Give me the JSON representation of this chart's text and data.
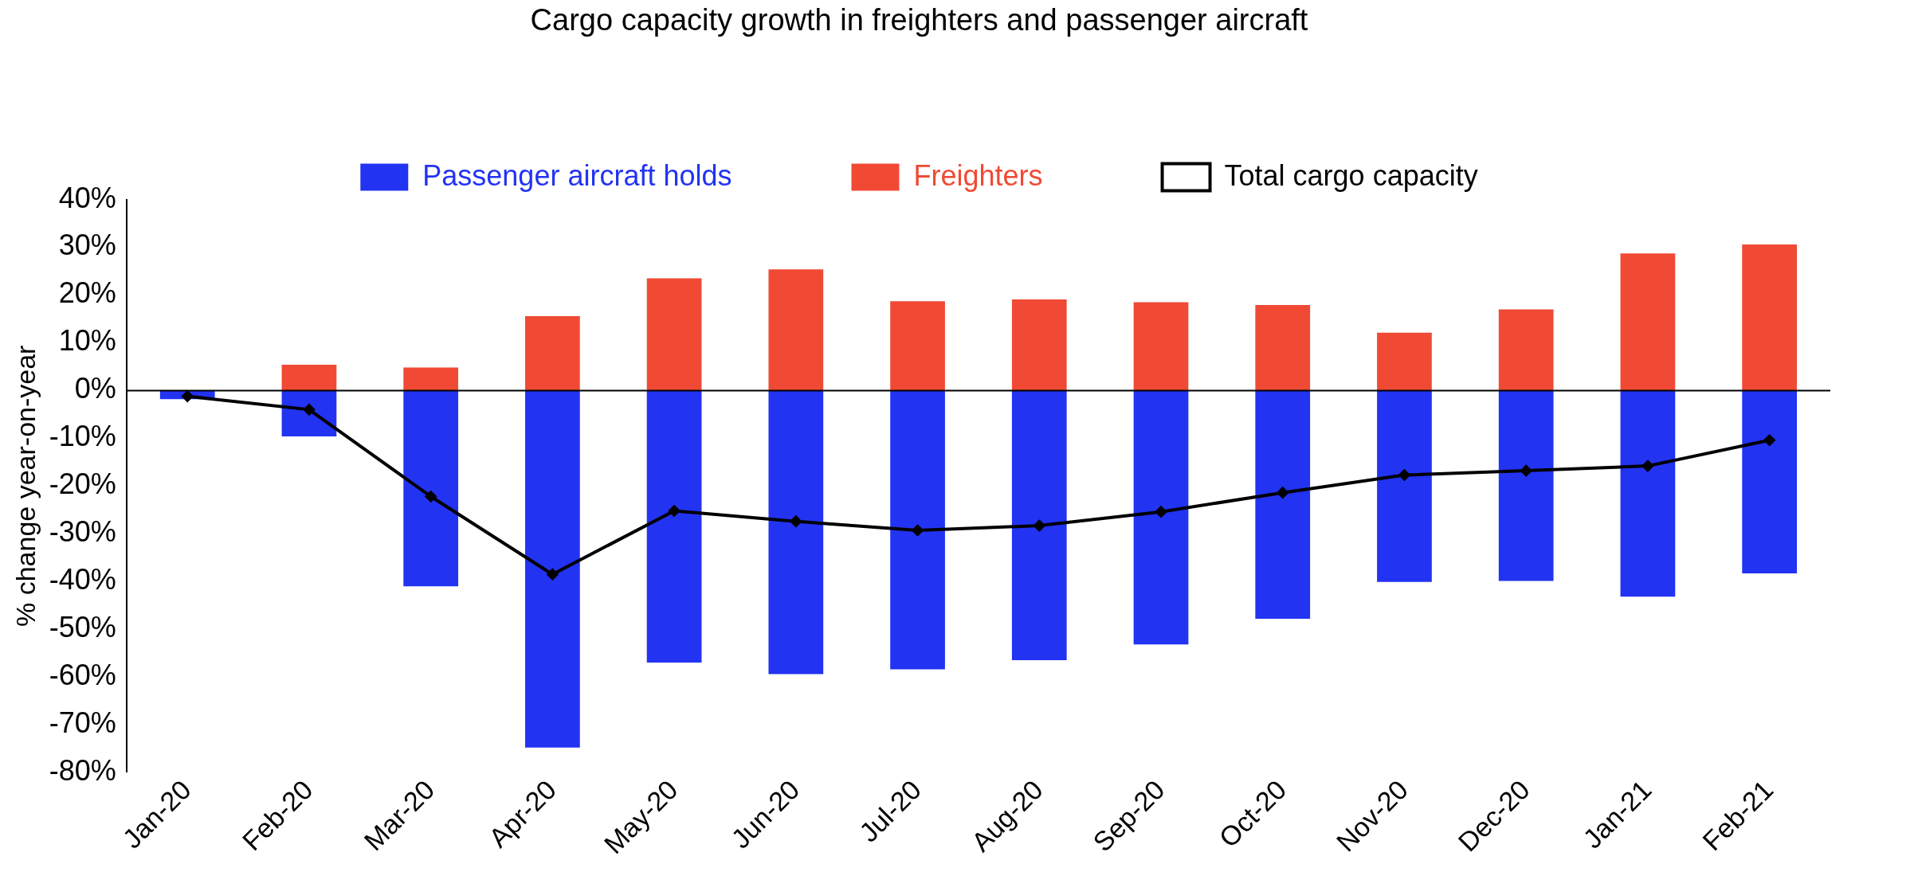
{
  "chart_data": {
    "type": "bar",
    "title": "Cargo capacity growth in freighters and passenger aircraft",
    "ylabel": "% change year-on-year",
    "categories": [
      "Jan-20",
      "Feb-20",
      "Mar-20",
      "Apr-20",
      "May-20",
      "Jun-20",
      "Jul-20",
      "Aug-20",
      "Sep-20",
      "Oct-20",
      "Nov-20",
      "Dec-20",
      "Jan-21",
      "Feb-21"
    ],
    "stacked": true,
    "series": [
      {
        "name": "Passenger aircraft holds",
        "color": "#2233f2",
        "values": [
          -1.8,
          -9.6,
          -41,
          -74.8,
          -57,
          -59.4,
          -58.4,
          -56.5,
          -53.2,
          -47.8,
          -40.1,
          -39.9,
          -43.2,
          -38.3
        ]
      },
      {
        "name": "Freighters",
        "color": "#f04a35",
        "values": [
          null,
          5.4,
          4.8,
          15.6,
          23.5,
          25.4,
          18.7,
          19.1,
          18.5,
          17.9,
          12.1,
          17,
          28.7,
          30.6
        ]
      },
      {
        "name": "Total cargo capacity",
        "type": "line",
        "color": "#000000",
        "marker": "diamond",
        "values": [
          -1.2,
          -4,
          -22.2,
          -38.5,
          -25.2,
          -27.4,
          -29.3,
          -28.3,
          -25.4,
          -21.4,
          -17.7,
          -16.8,
          -15.8,
          -10.4
        ]
      }
    ],
    "ylim": [
      -80,
      40
    ],
    "yticks": [
      {
        "value": -80,
        "label": "-80%"
      },
      {
        "value": -70,
        "label": "-70%"
      },
      {
        "value": -60,
        "label": "-60%"
      },
      {
        "value": -50,
        "label": "-50%"
      },
      {
        "value": -40,
        "label": "-40%"
      },
      {
        "value": -30,
        "label": "-30%"
      },
      {
        "value": -20,
        "label": "-20%"
      },
      {
        "value": -10,
        "label": "-10%"
      },
      {
        "value": 0,
        "label": "0%"
      },
      {
        "value": 10,
        "label": "10%"
      },
      {
        "value": 20,
        "label": "20%"
      },
      {
        "value": 30,
        "label": "30%"
      },
      {
        "value": 40,
        "label": "40%"
      }
    ],
    "ref_lines": [
      {
        "axis": "y",
        "value": 0,
        "color": "#000000"
      }
    ],
    "grid": false,
    "legend": "top"
  }
}
